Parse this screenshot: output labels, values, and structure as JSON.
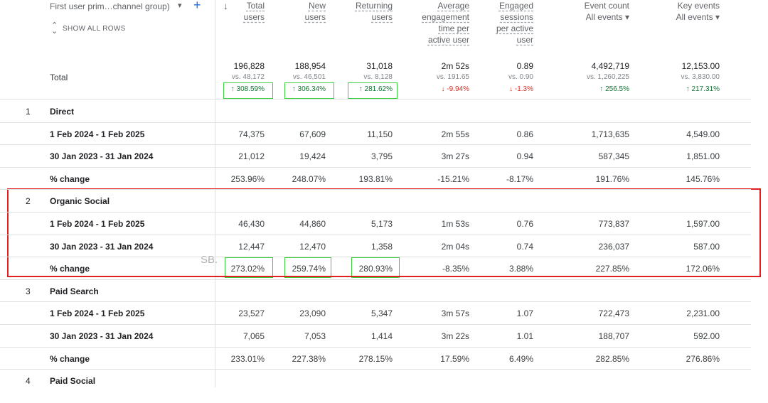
{
  "header": {
    "dimension": "First user prim…channel group)",
    "show_all_rows": "SHOW ALL ROWS",
    "columns": [
      {
        "label": "Total users"
      },
      {
        "label": "New users"
      },
      {
        "label": "Returning users"
      },
      {
        "label": "Average engagement time per active user"
      },
      {
        "label": "Engaged sessions per active user"
      },
      {
        "label": "Event count",
        "filter": "All events"
      },
      {
        "label": "Key events",
        "filter": "All events"
      }
    ]
  },
  "total": {
    "label": "Total",
    "cells": [
      {
        "value": "196,828",
        "comparison": "vs. 48,172",
        "change": "↑ 308.59%"
      },
      {
        "value": "188,954",
        "comparison": "vs. 46,501",
        "change": "↑ 306.34%"
      },
      {
        "value": "31,018",
        "comparison": "vs. 8,128",
        "change": "↑ 281.62%"
      },
      {
        "value": "2m 52s",
        "comparison": "vs. 191.65",
        "change": "↓ -9.94%"
      },
      {
        "value": "0.89",
        "comparison": "vs. 0.90",
        "change": "↓ -1.3%"
      },
      {
        "value": "4,492,719",
        "comparison": "vs. 1,260,225",
        "change": "↑ 256.5%"
      },
      {
        "value": "12,153.00",
        "comparison": "vs. 3,830.00",
        "change": "↑ 217.31%"
      }
    ]
  },
  "groups": [
    {
      "index": "1",
      "name": "Direct",
      "rows": [
        {
          "label": "1 Feb 2024 - 1 Feb 2025",
          "values": [
            "74,375",
            "67,609",
            "11,150",
            "2m 55s",
            "0.86",
            "1,713,635",
            "4,549.00"
          ]
        },
        {
          "label": "30 Jan 2023 - 31 Jan 2024",
          "values": [
            "21,012",
            "19,424",
            "3,795",
            "3m 27s",
            "0.94",
            "587,345",
            "1,851.00"
          ]
        },
        {
          "label": "% change",
          "values": [
            "253.96%",
            "248.07%",
            "193.81%",
            "-15.21%",
            "-8.17%",
            "191.76%",
            "145.76%"
          ]
        }
      ]
    },
    {
      "index": "2",
      "name": "Organic Social",
      "rows": [
        {
          "label": "1 Feb 2024 - 1 Feb 2025",
          "values": [
            "46,430",
            "44,860",
            "5,173",
            "1m 53s",
            "0.76",
            "773,837",
            "1,597.00"
          ]
        },
        {
          "label": "30 Jan 2023 - 31 Jan 2024",
          "values": [
            "12,447",
            "12,470",
            "1,358",
            "2m 04s",
            "0.74",
            "236,037",
            "587.00"
          ]
        },
        {
          "label": "% change",
          "values": [
            "273.02%",
            "259.74%",
            "280.93%",
            "-8.35%",
            "3.88%",
            "227.85%",
            "172.06%"
          ]
        }
      ]
    },
    {
      "index": "3",
      "name": "Paid Search",
      "rows": [
        {
          "label": "1 Feb 2024 - 1 Feb 2025",
          "values": [
            "23,527",
            "23,090",
            "5,347",
            "3m 57s",
            "1.07",
            "722,473",
            "2,231.00"
          ]
        },
        {
          "label": "30 Jan 2023 - 31 Jan 2024",
          "values": [
            "7,065",
            "7,053",
            "1,414",
            "3m 22s",
            "1.01",
            "188,707",
            "592.00"
          ]
        },
        {
          "label": "% change",
          "values": [
            "233.01%",
            "227.38%",
            "278.15%",
            "17.59%",
            "6.49%",
            "282.85%",
            "276.86%"
          ]
        }
      ]
    },
    {
      "index": "4",
      "name": "Paid Social",
      "rows": []
    }
  ],
  "watermark": "SB."
}
